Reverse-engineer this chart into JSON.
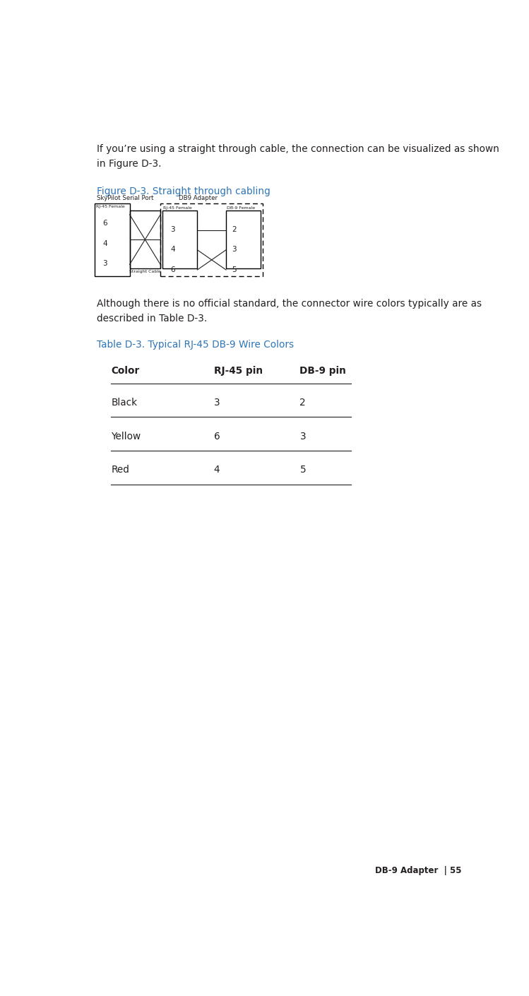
{
  "page_bg": "#ffffff",
  "body_text_color": "#231f20",
  "figure_caption_color": "#2e75b6",
  "table_caption_color": "#2e75b6",
  "footer_text": "DB-9 Adapter  | 55",
  "footer_font_size": 8.5,
  "line1": "If you’re using a straight through cable, the connection can be visualized as shown",
  "line2": "in Figure D-3.",
  "figure_caption": "Figure D-3. Straight through cabling",
  "between_line1": "Although there is no official standard, the connector wire colors typically are as",
  "between_line2": "described in Table D-3.",
  "table_caption": "Table D-3. Typical RJ-45 DB-9 Wire Colors",
  "table_headers": [
    "Color",
    "RJ-45 pin",
    "DB-9 pin"
  ],
  "table_rows": [
    [
      "Black",
      "3",
      "2"
    ],
    [
      "Yellow",
      "6",
      "3"
    ],
    [
      "Red",
      "4",
      "5"
    ]
  ],
  "lm": 0.075,
  "rm": 0.965,
  "bfs": 9.8,
  "cfs": 9.8,
  "tfs": 9.8
}
